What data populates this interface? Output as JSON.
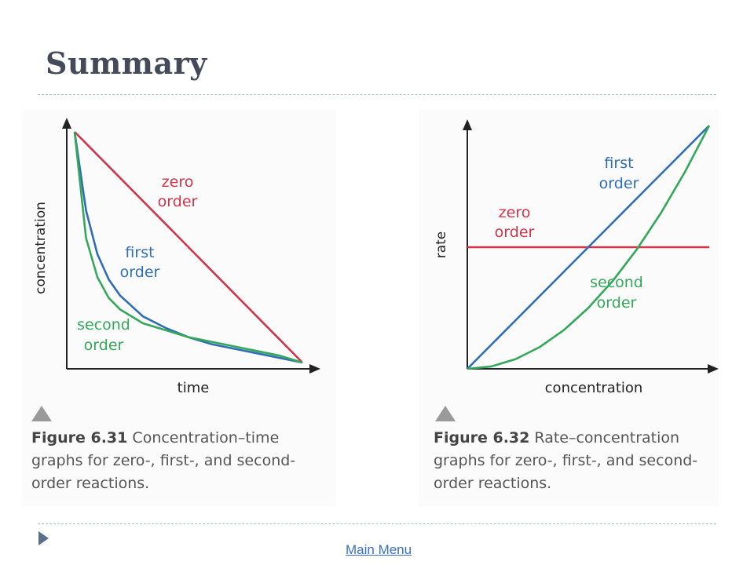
{
  "slide": {
    "title": "Summary",
    "main_menu_label": "Main Menu"
  },
  "colors": {
    "zero": "#d0354a",
    "first": "#2f6db5",
    "second": "#34a85a",
    "axis": "#222222"
  },
  "figures": [
    {
      "number": "Figure 6.31",
      "caption_text": "Concentration–time graphs for zero-, first-, and second-order reactions."
    },
    {
      "number": "Figure 6.32",
      "caption_text": "Rate–concentration graphs for zero-, first-, and second-order reactions."
    }
  ],
  "chart_data": [
    {
      "type": "line",
      "xlabel": "time",
      "ylabel": "concentration",
      "grid": false,
      "x": [
        0,
        0.05,
        0.1,
        0.15,
        0.2,
        0.3,
        0.4,
        0.5,
        0.6,
        0.7,
        0.8,
        0.9,
        1.0
      ],
      "series": [
        {
          "name": "zero order",
          "values": [
            1.0,
            0.95,
            0.9,
            0.85,
            0.8,
            0.7,
            0.6,
            0.5,
            0.4,
            0.3,
            0.2,
            0.1,
            0.0
          ]
        },
        {
          "name": "first order",
          "values": [
            1.0,
            0.66,
            0.47,
            0.36,
            0.29,
            0.2,
            0.15,
            0.11,
            0.08,
            0.06,
            0.04,
            0.02,
            0.0
          ]
        },
        {
          "name": "second order",
          "values": [
            1.0,
            0.54,
            0.37,
            0.28,
            0.23,
            0.17,
            0.14,
            0.11,
            0.09,
            0.07,
            0.05,
            0.03,
            0.0
          ]
        }
      ]
    },
    {
      "type": "line",
      "xlabel": "concentration",
      "ylabel": "rate",
      "grid": false,
      "x": [
        0,
        0.1,
        0.2,
        0.3,
        0.4,
        0.5,
        0.6,
        0.7,
        0.8,
        0.9,
        1.0
      ],
      "series": [
        {
          "name": "zero order",
          "values": [
            0.5,
            0.5,
            0.5,
            0.5,
            0.5,
            0.5,
            0.5,
            0.5,
            0.5,
            0.5,
            0.5
          ]
        },
        {
          "name": "first order",
          "values": [
            0.0,
            0.1,
            0.2,
            0.3,
            0.4,
            0.5,
            0.6,
            0.7,
            0.8,
            0.9,
            1.0
          ]
        },
        {
          "name": "second order",
          "values": [
            0.0,
            0.01,
            0.04,
            0.09,
            0.16,
            0.25,
            0.36,
            0.49,
            0.64,
            0.81,
            1.0
          ]
        }
      ]
    }
  ]
}
